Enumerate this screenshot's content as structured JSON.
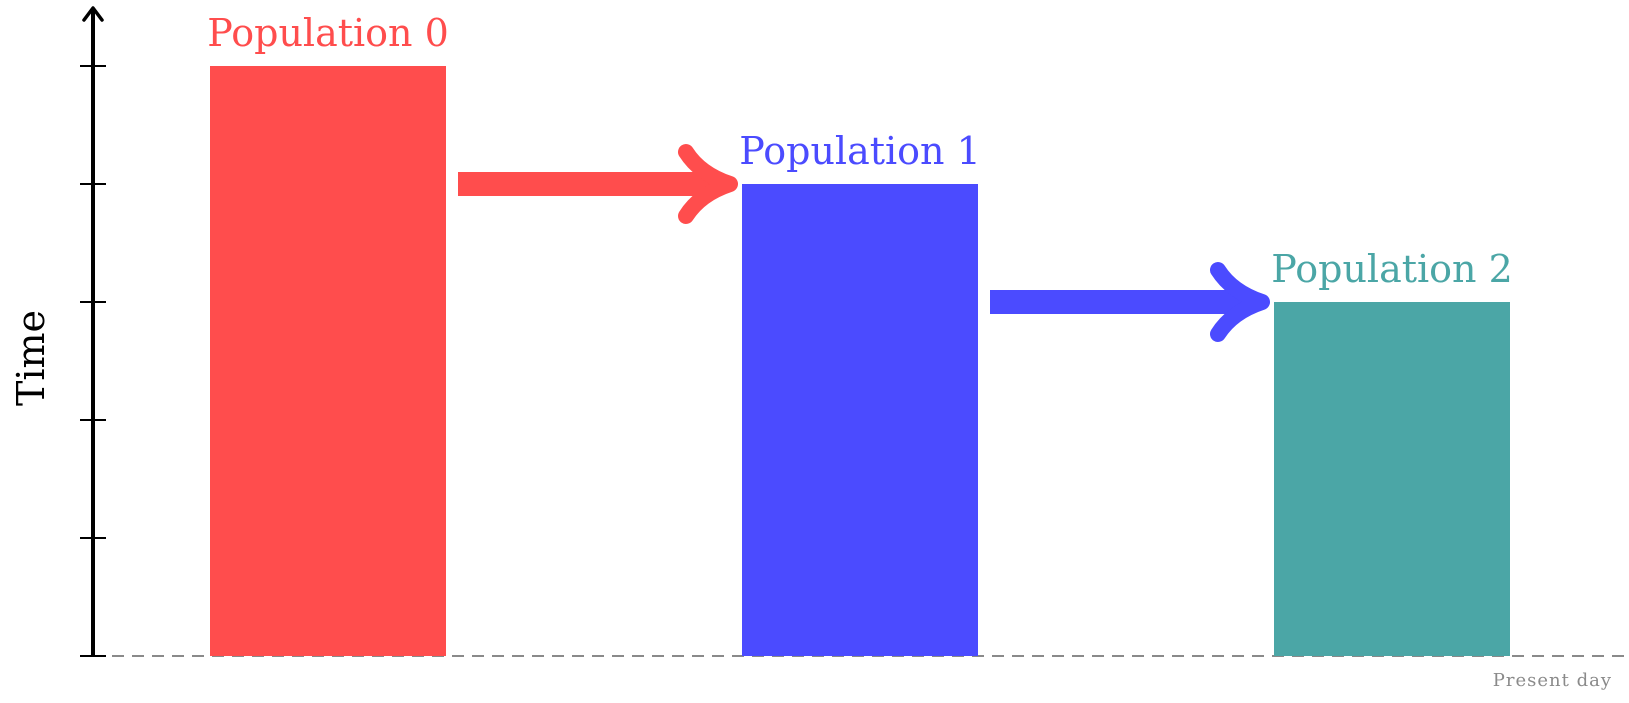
{
  "axis": {
    "label": "Time",
    "baseline_label": "Present day",
    "tick_count": 6,
    "axis_color": "#000000",
    "baseline_color": "#8a8a8a"
  },
  "populations": [
    {
      "label": "Population 0",
      "relative_height": 1.0,
      "color": "#ff4d4d"
    },
    {
      "label": "Population 1",
      "relative_height": 0.8,
      "color": "#4b4bff"
    },
    {
      "label": "Population 2",
      "relative_height": 0.6,
      "color": "#4ba6a6"
    }
  ],
  "arrows": [
    {
      "from": "Population 0",
      "to": "Population 1",
      "color": "#ff4d4d"
    },
    {
      "from": "Population 1",
      "to": "Population 2",
      "color": "#4b4bff"
    }
  ]
}
